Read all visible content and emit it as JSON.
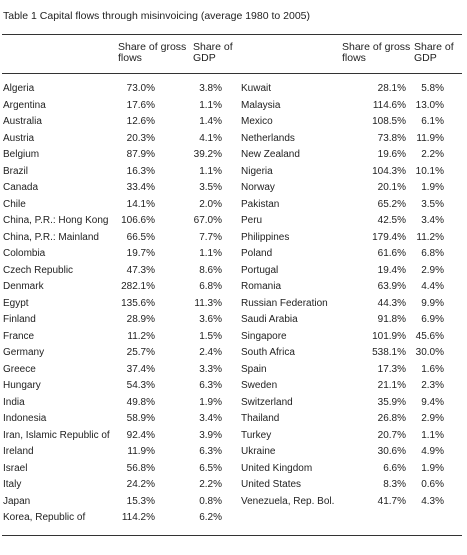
{
  "title": "Table 1  Capital flows through misinvoicing (average 1980 to 2005)",
  "headers": {
    "left": {
      "gross": "Share of gross\nflows",
      "gdp": "Share of\nGDP"
    },
    "right": {
      "gross": "Share of gross\nflows",
      "gdp": "Share of\nGDP"
    }
  },
  "left_rows": [
    {
      "country": "Algeria",
      "gross": "73.0%",
      "gdp": "3.8%"
    },
    {
      "country": "Argentina",
      "gross": "17.6%",
      "gdp": "1.1%"
    },
    {
      "country": "Australia",
      "gross": "12.6%",
      "gdp": "1.4%"
    },
    {
      "country": "Austria",
      "gross": "20.3%",
      "gdp": "4.1%"
    },
    {
      "country": "Belgium",
      "gross": "87.9%",
      "gdp": "39.2%"
    },
    {
      "country": "Brazil",
      "gross": "16.3%",
      "gdp": "1.1%"
    },
    {
      "country": "Canada",
      "gross": "33.4%",
      "gdp": "3.5%"
    },
    {
      "country": "Chile",
      "gross": "14.1%",
      "gdp": "2.0%"
    },
    {
      "country": "China, P.R.: Hong Kong",
      "gross": "106.6%",
      "gdp": "67.0%"
    },
    {
      "country": "China, P.R.: Mainland",
      "gross": "66.5%",
      "gdp": "7.7%"
    },
    {
      "country": "Colombia",
      "gross": "19.7%",
      "gdp": "1.1%"
    },
    {
      "country": "Czech Republic",
      "gross": "47.3%",
      "gdp": "8.6%"
    },
    {
      "country": "Denmark",
      "gross": "282.1%",
      "gdp": "6.8%"
    },
    {
      "country": "Egypt",
      "gross": "135.6%",
      "gdp": "11.3%"
    },
    {
      "country": "Finland",
      "gross": "28.9%",
      "gdp": "3.6%"
    },
    {
      "country": "France",
      "gross": "11.2%",
      "gdp": "1.5%"
    },
    {
      "country": "Germany",
      "gross": "25.7%",
      "gdp": "2.4%"
    },
    {
      "country": "Greece",
      "gross": "37.4%",
      "gdp": "3.3%"
    },
    {
      "country": "Hungary",
      "gross": "54.3%",
      "gdp": "6.3%"
    },
    {
      "country": "India",
      "gross": "49.8%",
      "gdp": "1.9%"
    },
    {
      "country": "Indonesia",
      "gross": "58.9%",
      "gdp": "3.4%"
    },
    {
      "country": "Iran, Islamic Republic of",
      "gross": "92.4%",
      "gdp": "3.9%"
    },
    {
      "country": "Ireland",
      "gross": "11.9%",
      "gdp": "6.3%"
    },
    {
      "country": "Israel",
      "gross": "56.8%",
      "gdp": "6.5%"
    },
    {
      "country": "Italy",
      "gross": "24.2%",
      "gdp": "2.2%"
    },
    {
      "country": "Japan",
      "gross": "15.3%",
      "gdp": "0.8%"
    },
    {
      "country": "Korea, Republic of",
      "gross": "114.2%",
      "gdp": "6.2%"
    }
  ],
  "right_rows": [
    {
      "country": "Kuwait",
      "gross": "28.1%",
      "gdp": "5.8%"
    },
    {
      "country": "Malaysia",
      "gross": "114.6%",
      "gdp": "13.0%"
    },
    {
      "country": "Mexico",
      "gross": "108.5%",
      "gdp": "6.1%"
    },
    {
      "country": "Netherlands",
      "gross": "73.8%",
      "gdp": "11.9%"
    },
    {
      "country": "New Zealand",
      "gross": "19.6%",
      "gdp": "2.2%"
    },
    {
      "country": "Nigeria",
      "gross": "104.3%",
      "gdp": "10.1%"
    },
    {
      "country": "Norway",
      "gross": "20.1%",
      "gdp": "1.9%"
    },
    {
      "country": "Pakistan",
      "gross": "65.2%",
      "gdp": "3.5%"
    },
    {
      "country": "Peru",
      "gross": "42.5%",
      "gdp": "3.4%"
    },
    {
      "country": "Philippines",
      "gross": "179.4%",
      "gdp": "11.2%"
    },
    {
      "country": "Poland",
      "gross": "61.6%",
      "gdp": "6.8%"
    },
    {
      "country": "Portugal",
      "gross": "19.4%",
      "gdp": "2.9%"
    },
    {
      "country": "Romania",
      "gross": "63.9%",
      "gdp": "4.4%"
    },
    {
      "country": "Russian Federation",
      "gross": "44.3%",
      "gdp": "9.9%"
    },
    {
      "country": "Saudi Arabia",
      "gross": "91.8%",
      "gdp": "6.9%"
    },
    {
      "country": "Singapore",
      "gross": "101.9%",
      "gdp": "45.6%"
    },
    {
      "country": "South Africa",
      "gross": "538.1%",
      "gdp": "30.0%"
    },
    {
      "country": "Spain",
      "gross": "17.3%",
      "gdp": "1.6%"
    },
    {
      "country": "Sweden",
      "gross": "21.1%",
      "gdp": "2.3%"
    },
    {
      "country": "Switzerland",
      "gross": "35.9%",
      "gdp": "9.4%"
    },
    {
      "country": "Thailand",
      "gross": "26.8%",
      "gdp": "2.9%"
    },
    {
      "country": "Turkey",
      "gross": "20.7%",
      "gdp": "1.1%"
    },
    {
      "country": "Ukraine",
      "gross": "30.6%",
      "gdp": "4.9%"
    },
    {
      "country": "United Kingdom",
      "gross": "6.6%",
      "gdp": "1.9%"
    },
    {
      "country": "United States",
      "gross": "8.3%",
      "gdp": "0.6%"
    },
    {
      "country": "Venezuela, Rep. Bol.",
      "gross": "41.7%",
      "gdp": "4.3%"
    }
  ]
}
